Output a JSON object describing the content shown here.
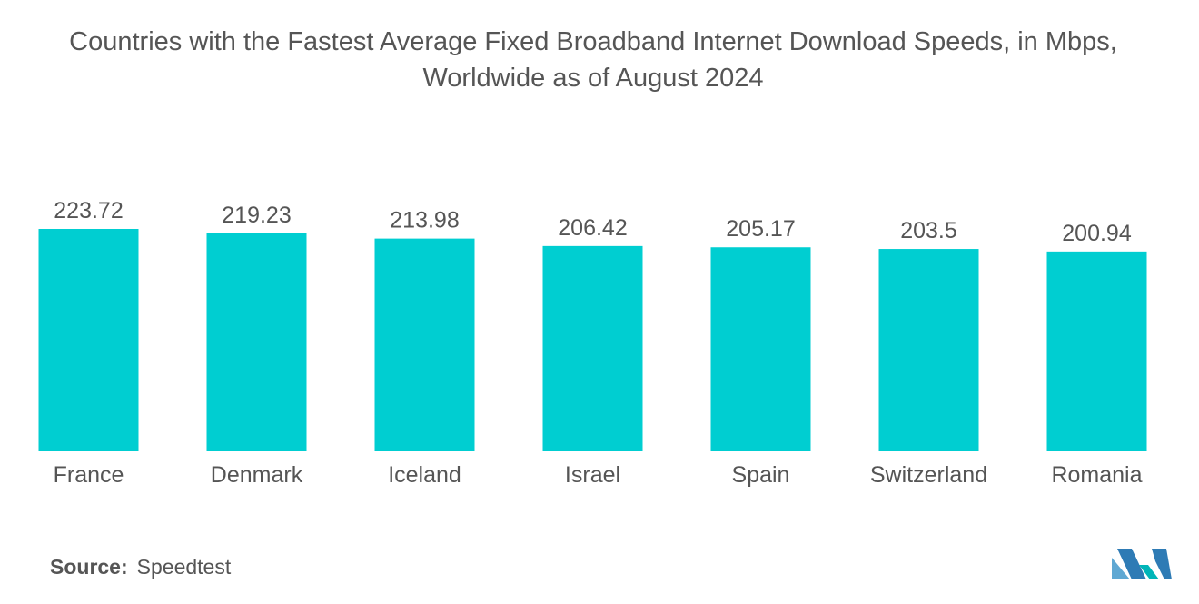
{
  "title_line1": "Countries with the Fastest Average Fixed Broadband Internet Download Speeds, in Mbps,",
  "title_line2": "Worldwide as of August 2024",
  "source_label": "Source:",
  "source_value": "Speedtest",
  "colors": {
    "bar": "#00CED1",
    "text": "#555555",
    "logo_light": "#5FA8D3",
    "logo_dark": "#2E7BB5",
    "logo_teal": "#00B5B8"
  },
  "logo_icon": "mordor-intelligence-logo-icon",
  "chart_data": {
    "type": "bar",
    "title": "Countries with the Fastest Average Fixed Broadband Internet Download Speeds, in Mbps, Worldwide as of August 2024",
    "categories": [
      "France",
      "Denmark",
      "Iceland",
      "Israel",
      "Spain",
      "Switzerland",
      "Romania"
    ],
    "values": [
      223.72,
      219.23,
      213.98,
      206.42,
      205.17,
      203.5,
      200.94
    ],
    "value_labels": [
      "223.72",
      "219.23",
      "213.98",
      "206.42",
      "205.17",
      "203.5",
      "200.94"
    ],
    "ylim": [
      0,
      223.72
    ],
    "grid": false,
    "legend": "none"
  }
}
